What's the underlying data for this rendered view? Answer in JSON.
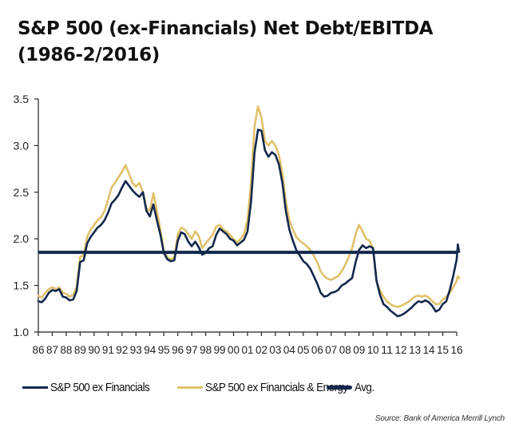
{
  "title": {
    "line1": "S&P 500 (ex-Financials) Net Debt/EBITDA",
    "line2": "(1986-2/2016)"
  },
  "legend": {
    "items": [
      {
        "label": "S&P 500 ex Financials",
        "color": "#12284c"
      },
      {
        "label": "S&P 500 ex Financials & Energy",
        "color": "#e0c06a"
      },
      {
        "label": "Avg.",
        "color": "#12284c"
      }
    ]
  },
  "source": "Source: Bank of America Merrill Lynch",
  "chart_data": {
    "type": "line",
    "title": "S&P 500 (ex-Financials) Net Debt/EBITDA (1986-2/2016)",
    "xlabel": "",
    "ylabel": "",
    "xlim": [
      1986,
      2016
    ],
    "ylim": [
      1.0,
      3.5
    ],
    "y_ticks": [
      "1.0",
      "1.5",
      "2.0",
      "2.5",
      "3.0",
      "3.5"
    ],
    "y_tick_values": [
      1.0,
      1.5,
      2.0,
      2.5,
      3.0,
      3.5
    ],
    "x_ticks": [
      "86",
      "87",
      "88",
      "89",
      "90",
      "91",
      "92",
      "93",
      "94",
      "95",
      "96",
      "97",
      "98",
      "99",
      "00",
      "01",
      "02",
      "03",
      "04",
      "05",
      "06",
      "07",
      "08",
      "09",
      "10",
      "11",
      "12",
      "13",
      "14",
      "15",
      "16"
    ],
    "x_tick_values": [
      1986,
      1987,
      1988,
      1989,
      1990,
      1991,
      1992,
      1993,
      1994,
      1995,
      1996,
      1997,
      1998,
      1999,
      2000,
      2001,
      2002,
      2003,
      2004,
      2005,
      2006,
      2007,
      2008,
      2009,
      2010,
      2011,
      2012,
      2013,
      2014,
      2015,
      2016
    ],
    "grid": false,
    "legend_position": "bottom",
    "series": [
      {
        "name": "S&P 500 ex Financials",
        "color": "#12284c",
        "x": [
          1986.0,
          1986.25,
          1986.5,
          1986.75,
          1987.0,
          1987.25,
          1987.5,
          1987.75,
          1988.0,
          1988.25,
          1988.5,
          1988.75,
          1989.0,
          1989.25,
          1989.5,
          1989.75,
          1990.0,
          1990.25,
          1990.5,
          1990.75,
          1991.0,
          1991.25,
          1991.5,
          1991.75,
          1992.0,
          1992.25,
          1992.5,
          1992.75,
          1993.0,
          1993.25,
          1993.5,
          1993.75,
          1994.0,
          1994.25,
          1994.5,
          1994.75,
          1995.0,
          1995.25,
          1995.5,
          1995.75,
          1996.0,
          1996.25,
          1996.5,
          1996.75,
          1997.0,
          1997.25,
          1997.5,
          1997.75,
          1998.0,
          1998.25,
          1998.5,
          1998.75,
          1999.0,
          1999.25,
          1999.5,
          1999.75,
          2000.0,
          2000.25,
          2000.5,
          2000.75,
          2001.0,
          2001.25,
          2001.5,
          2001.75,
          2002.0,
          2002.25,
          2002.5,
          2002.75,
          2003.0,
          2003.25,
          2003.5,
          2003.75,
          2004.0,
          2004.25,
          2004.5,
          2004.75,
          2005.0,
          2005.25,
          2005.5,
          2005.75,
          2006.0,
          2006.25,
          2006.5,
          2006.75,
          2007.0,
          2007.25,
          2007.5,
          2007.75,
          2008.0,
          2008.25,
          2008.5,
          2008.75,
          2009.0,
          2009.25,
          2009.5,
          2009.75,
          2010.0,
          2010.25,
          2010.5,
          2010.75,
          2011.0,
          2011.25,
          2011.5,
          2011.75,
          2012.0,
          2012.25,
          2012.5,
          2012.75,
          2013.0,
          2013.25,
          2013.5,
          2013.75,
          2014.0,
          2014.25,
          2014.5,
          2014.75,
          2015.0,
          2015.25,
          2015.5,
          2015.75,
          2016.0,
          2016.08,
          2016.17
        ],
        "values": [
          1.33,
          1.32,
          1.36,
          1.42,
          1.45,
          1.44,
          1.46,
          1.38,
          1.37,
          1.34,
          1.35,
          1.44,
          1.75,
          1.77,
          1.95,
          2.02,
          2.07,
          2.12,
          2.15,
          2.2,
          2.28,
          2.38,
          2.42,
          2.47,
          2.55,
          2.62,
          2.57,
          2.52,
          2.48,
          2.45,
          2.5,
          2.3,
          2.24,
          2.37,
          2.2,
          2.05,
          1.85,
          1.78,
          1.76,
          1.77,
          1.98,
          2.07,
          2.05,
          1.97,
          1.92,
          1.97,
          1.91,
          1.83,
          1.85,
          1.9,
          1.92,
          2.04,
          2.11,
          2.08,
          2.05,
          2.0,
          1.98,
          1.93,
          1.96,
          1.99,
          2.08,
          2.4,
          2.92,
          3.17,
          3.16,
          2.95,
          2.88,
          2.93,
          2.9,
          2.8,
          2.6,
          2.3,
          2.1,
          1.98,
          1.88,
          1.82,
          1.76,
          1.73,
          1.68,
          1.6,
          1.52,
          1.42,
          1.38,
          1.39,
          1.42,
          1.43,
          1.45,
          1.5,
          1.52,
          1.55,
          1.58,
          1.75,
          1.88,
          1.93,
          1.9,
          1.92,
          1.9,
          1.55,
          1.4,
          1.3,
          1.27,
          1.23,
          1.2,
          1.17,
          1.18,
          1.2,
          1.23,
          1.26,
          1.3,
          1.33,
          1.32,
          1.34,
          1.32,
          1.28,
          1.22,
          1.24,
          1.3,
          1.33,
          1.45,
          1.6,
          1.78,
          1.94,
          1.86
        ]
      },
      {
        "name": "S&P 500 ex Financials & Energy",
        "color": "#e0c06a",
        "x": [
          1986.0,
          1986.25,
          1986.5,
          1986.75,
          1987.0,
          1987.25,
          1987.5,
          1987.75,
          1988.0,
          1988.25,
          1988.5,
          1988.75,
          1989.0,
          1989.25,
          1989.5,
          1989.75,
          1990.0,
          1990.25,
          1990.5,
          1990.75,
          1991.0,
          1991.25,
          1991.5,
          1991.75,
          1992.0,
          1992.25,
          1992.5,
          1992.75,
          1993.0,
          1993.25,
          1993.5,
          1993.75,
          1994.0,
          1994.25,
          1994.5,
          1994.75,
          1995.0,
          1995.25,
          1995.5,
          1995.75,
          1996.0,
          1996.25,
          1996.5,
          1996.75,
          1997.0,
          1997.25,
          1997.5,
          1997.75,
          1998.0,
          1998.25,
          1998.5,
          1998.75,
          1999.0,
          1999.25,
          1999.5,
          1999.75,
          2000.0,
          2000.25,
          2000.5,
          2000.75,
          2001.0,
          2001.25,
          2001.5,
          2001.75,
          2002.0,
          2002.25,
          2002.5,
          2002.75,
          2003.0,
          2003.25,
          2003.5,
          2003.75,
          2004.0,
          2004.25,
          2004.5,
          2004.75,
          2005.0,
          2005.25,
          2005.5,
          2005.75,
          2006.0,
          2006.25,
          2006.5,
          2006.75,
          2007.0,
          2007.25,
          2007.5,
          2007.75,
          2008.0,
          2008.25,
          2008.5,
          2008.75,
          2009.0,
          2009.25,
          2009.5,
          2009.75,
          2010.0,
          2010.25,
          2010.5,
          2010.75,
          2011.0,
          2011.25,
          2011.5,
          2011.75,
          2012.0,
          2012.25,
          2012.5,
          2012.75,
          2013.0,
          2013.25,
          2013.5,
          2013.75,
          2014.0,
          2014.25,
          2014.5,
          2014.75,
          2015.0,
          2015.25,
          2015.5,
          2015.75,
          2016.0,
          2016.08,
          2016.17
        ],
        "values": [
          1.39,
          1.37,
          1.42,
          1.46,
          1.48,
          1.46,
          1.48,
          1.42,
          1.41,
          1.38,
          1.4,
          1.48,
          1.81,
          1.82,
          2.02,
          2.1,
          2.15,
          2.2,
          2.23,
          2.3,
          2.42,
          2.55,
          2.6,
          2.66,
          2.72,
          2.79,
          2.7,
          2.6,
          2.56,
          2.6,
          2.5,
          2.33,
          2.3,
          2.49,
          2.3,
          2.1,
          1.87,
          1.8,
          1.78,
          1.8,
          2.05,
          2.12,
          2.1,
          2.05,
          2.0,
          2.08,
          2.03,
          1.9,
          1.95,
          2.0,
          2.04,
          2.13,
          2.15,
          2.1,
          2.08,
          2.04,
          2.0,
          1.96,
          2.0,
          2.05,
          2.2,
          2.6,
          3.2,
          3.42,
          3.3,
          3.05,
          3.0,
          3.05,
          3.0,
          2.9,
          2.7,
          2.4,
          2.2,
          2.1,
          2.02,
          1.98,
          1.95,
          1.92,
          1.88,
          1.82,
          1.75,
          1.65,
          1.6,
          1.57,
          1.56,
          1.58,
          1.6,
          1.65,
          1.72,
          1.8,
          1.9,
          2.05,
          2.15,
          2.08,
          2.0,
          1.98,
          1.9,
          1.54,
          1.45,
          1.38,
          1.33,
          1.3,
          1.28,
          1.27,
          1.28,
          1.3,
          1.32,
          1.35,
          1.38,
          1.39,
          1.38,
          1.39,
          1.37,
          1.33,
          1.3,
          1.3,
          1.35,
          1.38,
          1.42,
          1.48,
          1.55,
          1.6,
          1.58
        ]
      },
      {
        "name": "Avg.",
        "color": "#12284c",
        "x": [
          1986.0,
          2016.0
        ],
        "values": [
          1.855,
          1.855
        ]
      }
    ]
  }
}
